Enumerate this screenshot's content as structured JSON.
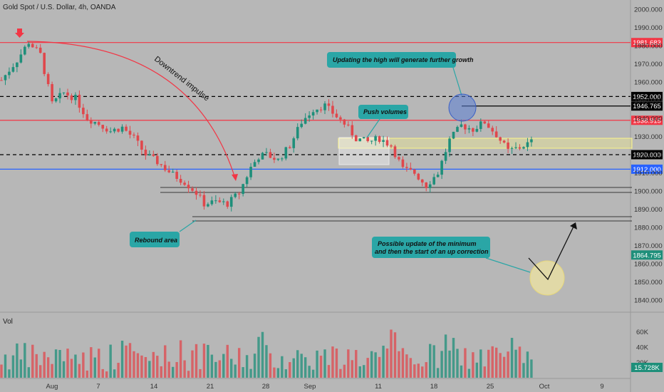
{
  "header": {
    "symbol_title": "Gold Spot / U.S. Dollar, 4h, OANDA"
  },
  "colors": {
    "background": "#b7b7b7",
    "up_candle": "#1e8f7a",
    "down_candle": "#e0474c",
    "red_level": "#f23645",
    "blue_level": "#2962ff",
    "callout_fill": "#2aa6a6",
    "yellow_zone": "#fbf58a"
  },
  "chart_data": {
    "type": "candlestick",
    "title": "Gold Spot / U.S. Dollar, 4h, OANDA",
    "ylim": [
      1836,
      2003
    ],
    "y_ticks": [
      "2000.000",
      "1990.000",
      "1980.000",
      "1970.000",
      "1960.000",
      "1950.000",
      "1940.000",
      "1930.000",
      "1920.000",
      "1910.000",
      "1900.000",
      "1890.000",
      "1880.000",
      "1870.000",
      "1860.000",
      "1850.000",
      "1840.000"
    ],
    "x_ticks": [
      "Aug",
      "7",
      "14",
      "21",
      "28",
      "Sep",
      "11",
      "18",
      "25",
      "Oct",
      "9"
    ],
    "path": [
      [
        0,
        1961
      ],
      [
        4,
        1972
      ],
      [
        7,
        1982
      ],
      [
        10,
        1975
      ],
      [
        13,
        1948
      ],
      [
        16,
        1954
      ],
      [
        19,
        1951
      ],
      [
        22,
        1940
      ],
      [
        25,
        1937
      ],
      [
        28,
        1933
      ],
      [
        31,
        1935
      ],
      [
        34,
        1929
      ],
      [
        37,
        1920
      ],
      [
        40,
        1916
      ],
      [
        44,
        1909
      ],
      [
        47,
        1905
      ],
      [
        50,
        1899
      ],
      [
        52,
        1893
      ],
      [
        55,
        1894
      ],
      [
        58,
        1893
      ],
      [
        61,
        1899
      ],
      [
        64,
        1913
      ],
      [
        66,
        1919
      ],
      [
        68,
        1920
      ],
      [
        71,
        1917
      ],
      [
        74,
        1925
      ],
      [
        77,
        1938
      ],
      [
        80,
        1945
      ],
      [
        83,
        1947
      ],
      [
        85,
        1943
      ],
      [
        88,
        1937
      ],
      [
        91,
        1929
      ],
      [
        94,
        1927
      ],
      [
        97,
        1929
      ],
      [
        100,
        1925
      ],
      [
        103,
        1912
      ],
      [
        106,
        1910
      ],
      [
        109,
        1903
      ],
      [
        112,
        1910
      ],
      [
        115,
        1928
      ],
      [
        118,
        1936
      ],
      [
        121,
        1934
      ],
      [
        124,
        1938
      ],
      [
        127,
        1931
      ],
      [
        130,
        1922
      ],
      [
        133,
        1924
      ],
      [
        136,
        1927
      ]
    ],
    "horizontal_levels": [
      {
        "price": 1981.683,
        "label": "1981.683",
        "style": "solid",
        "color": "#f23645"
      },
      {
        "price": 1952.0,
        "label": "1952.000",
        "style": "dashed",
        "color": "#000000"
      },
      {
        "price": 1946.765,
        "label": "1946.765",
        "style": "solid",
        "color": "#000000"
      },
      {
        "price": 1938.915,
        "label": "1938.915",
        "style": "solid",
        "color": "#f23645"
      },
      {
        "price": 1920.0,
        "label": "1920.000",
        "style": "dashed",
        "color": "#000000"
      },
      {
        "price": 1912.0,
        "label": "1912.000",
        "style": "solid",
        "color": "#2962ff"
      },
      {
        "price": 1864.795,
        "label": "1864.795",
        "style": "price",
        "color": "#1e8f7a"
      }
    ],
    "annotations": [
      "Downtrend impulse",
      "Updating the high will generate further growth",
      "Push volumes",
      "Rebound area",
      "Possible update of the minimum and then the start of an up correction"
    ],
    "volume": {
      "label": "Vol",
      "y_ticks": [
        "60K",
        "40K",
        "20K"
      ],
      "last_value": "15.728K",
      "max": 70000
    }
  }
}
